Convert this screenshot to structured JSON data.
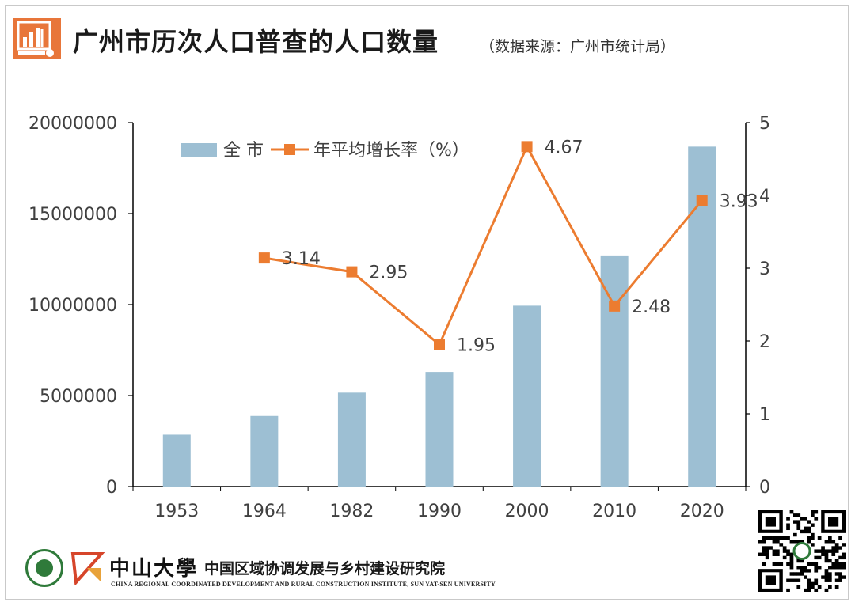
{
  "header": {
    "title": "广州市历次人口普查的人口数量",
    "source": "（数据来源：广州市统计局）"
  },
  "colors": {
    "bar": "#9dbfd3",
    "line": "#ec7c30",
    "logo": "#e8763a",
    "seal": "#2f7a3a"
  },
  "footer": {
    "university_cn": "中山大學",
    "institute_cn": "中国区域协调发展与乡村建设研究院",
    "institute_en": "CHINA REGIONAL COORDINATED DEVELOPMENT AND RURAL CONSTRUCTION INSTITUTE, SUN YAT-SEN UNIVERSITY"
  },
  "chart_data": {
    "type": "bar",
    "categories": [
      "1953",
      "1964",
      "1982",
      "1990",
      "2000",
      "2010",
      "2020"
    ],
    "series": [
      {
        "name": "全 市",
        "type": "bar",
        "axis": "left",
        "values": [
          2850000,
          3880000,
          5160000,
          6300000,
          9940000,
          12700000,
          18680000
        ]
      },
      {
        "name": "年平均增长率（%）",
        "type": "line",
        "axis": "right",
        "values": [
          null,
          3.14,
          2.95,
          1.95,
          4.67,
          2.48,
          3.93
        ],
        "labels": [
          "",
          "3.14",
          "2.95",
          "1.95",
          "4.67",
          "2.48",
          "3.93"
        ]
      }
    ],
    "y_left": {
      "min": 0,
      "max": 20000000,
      "ticks": [
        "0",
        "5000000",
        "10000000",
        "15000000",
        "20000000"
      ]
    },
    "y_right": {
      "min": 0,
      "max": 5,
      "ticks": [
        "0",
        "1",
        "2",
        "3",
        "4",
        "5"
      ]
    },
    "grid": false,
    "legend_position": "top-left"
  }
}
